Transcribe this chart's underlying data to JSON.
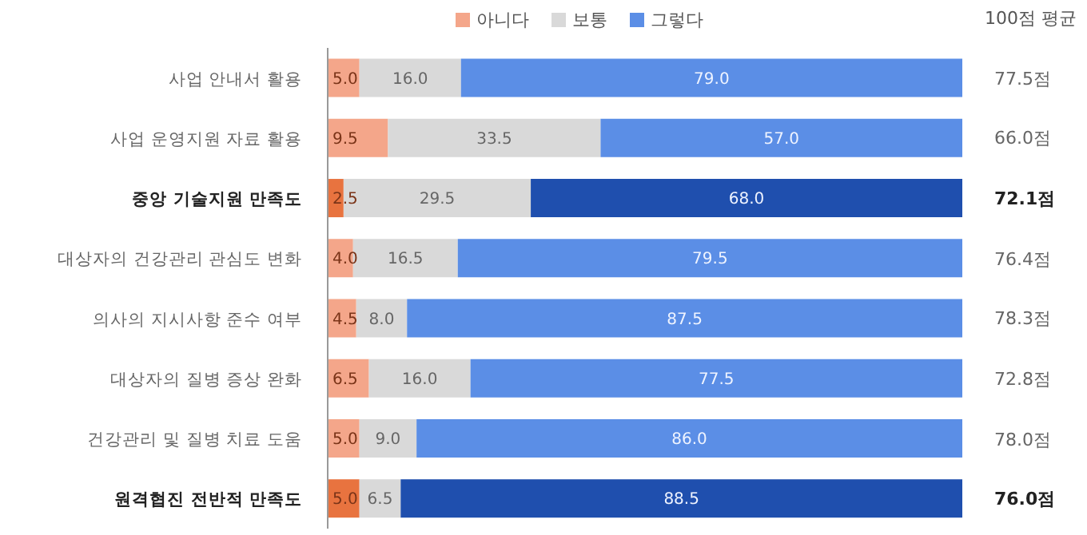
{
  "chart_data": {
    "type": "bar",
    "orientation": "horizontal",
    "stacked": true,
    "legend": "top",
    "categories": [
      "사업 안내서 활용",
      "사업 운영지원 자료 활용",
      "중앙 기술지원 만족도",
      "대상자의 건강관리 관심도 변화",
      "의사의 지시사항 준수 여부",
      "대상자의 질병 증상 완화",
      "건강관리 및 질병 치료 도움",
      "원격협진 전반적 만족도"
    ],
    "series": [
      {
        "name": "아니다",
        "color": "#f4a68a",
        "colors": [
          "#f4a68a",
          "#f4a68a",
          "#e8733f",
          "#f4a68a",
          "#f4a68a",
          "#f4a68a",
          "#f4a68a",
          "#e8733f"
        ],
        "values": [
          5.0,
          9.5,
          2.5,
          4.0,
          4.5,
          6.5,
          5.0,
          5.0
        ],
        "value_labels": [
          "5.0",
          "9.5",
          "2.5",
          "4.0",
          "4.5",
          "6.5",
          "5.0",
          "5.0"
        ]
      },
      {
        "name": "보통",
        "color": "#d9d9d9",
        "values": [
          16.0,
          33.5,
          29.5,
          16.5,
          8.0,
          16.0,
          9.0,
          6.5
        ],
        "value_labels": [
          "16.0",
          "33.5",
          "29.5",
          "16.5",
          "8.0",
          "16.0",
          "9.0",
          "6.5"
        ]
      },
      {
        "name": "그렇다",
        "color": "#5b8ee6",
        "colors": [
          "#5b8ee6",
          "#5b8ee6",
          "#1f4fae",
          "#5b8ee6",
          "#5b8ee6",
          "#5b8ee6",
          "#5b8ee6",
          "#1f4fae"
        ],
        "values": [
          79.0,
          57.0,
          68.0,
          79.5,
          87.5,
          77.5,
          86.0,
          88.5
        ],
        "value_labels": [
          "79.0",
          "57.0",
          "68.0",
          "79.5",
          "87.5",
          "77.5",
          "86.0",
          "88.5"
        ]
      }
    ],
    "annotations": [
      "100점 평균",
      "77.5점",
      "66.0점",
      "72.1점",
      "76.4점",
      "78.3점",
      "72.8점",
      "78.0점",
      "76.0점"
    ]
  }
}
